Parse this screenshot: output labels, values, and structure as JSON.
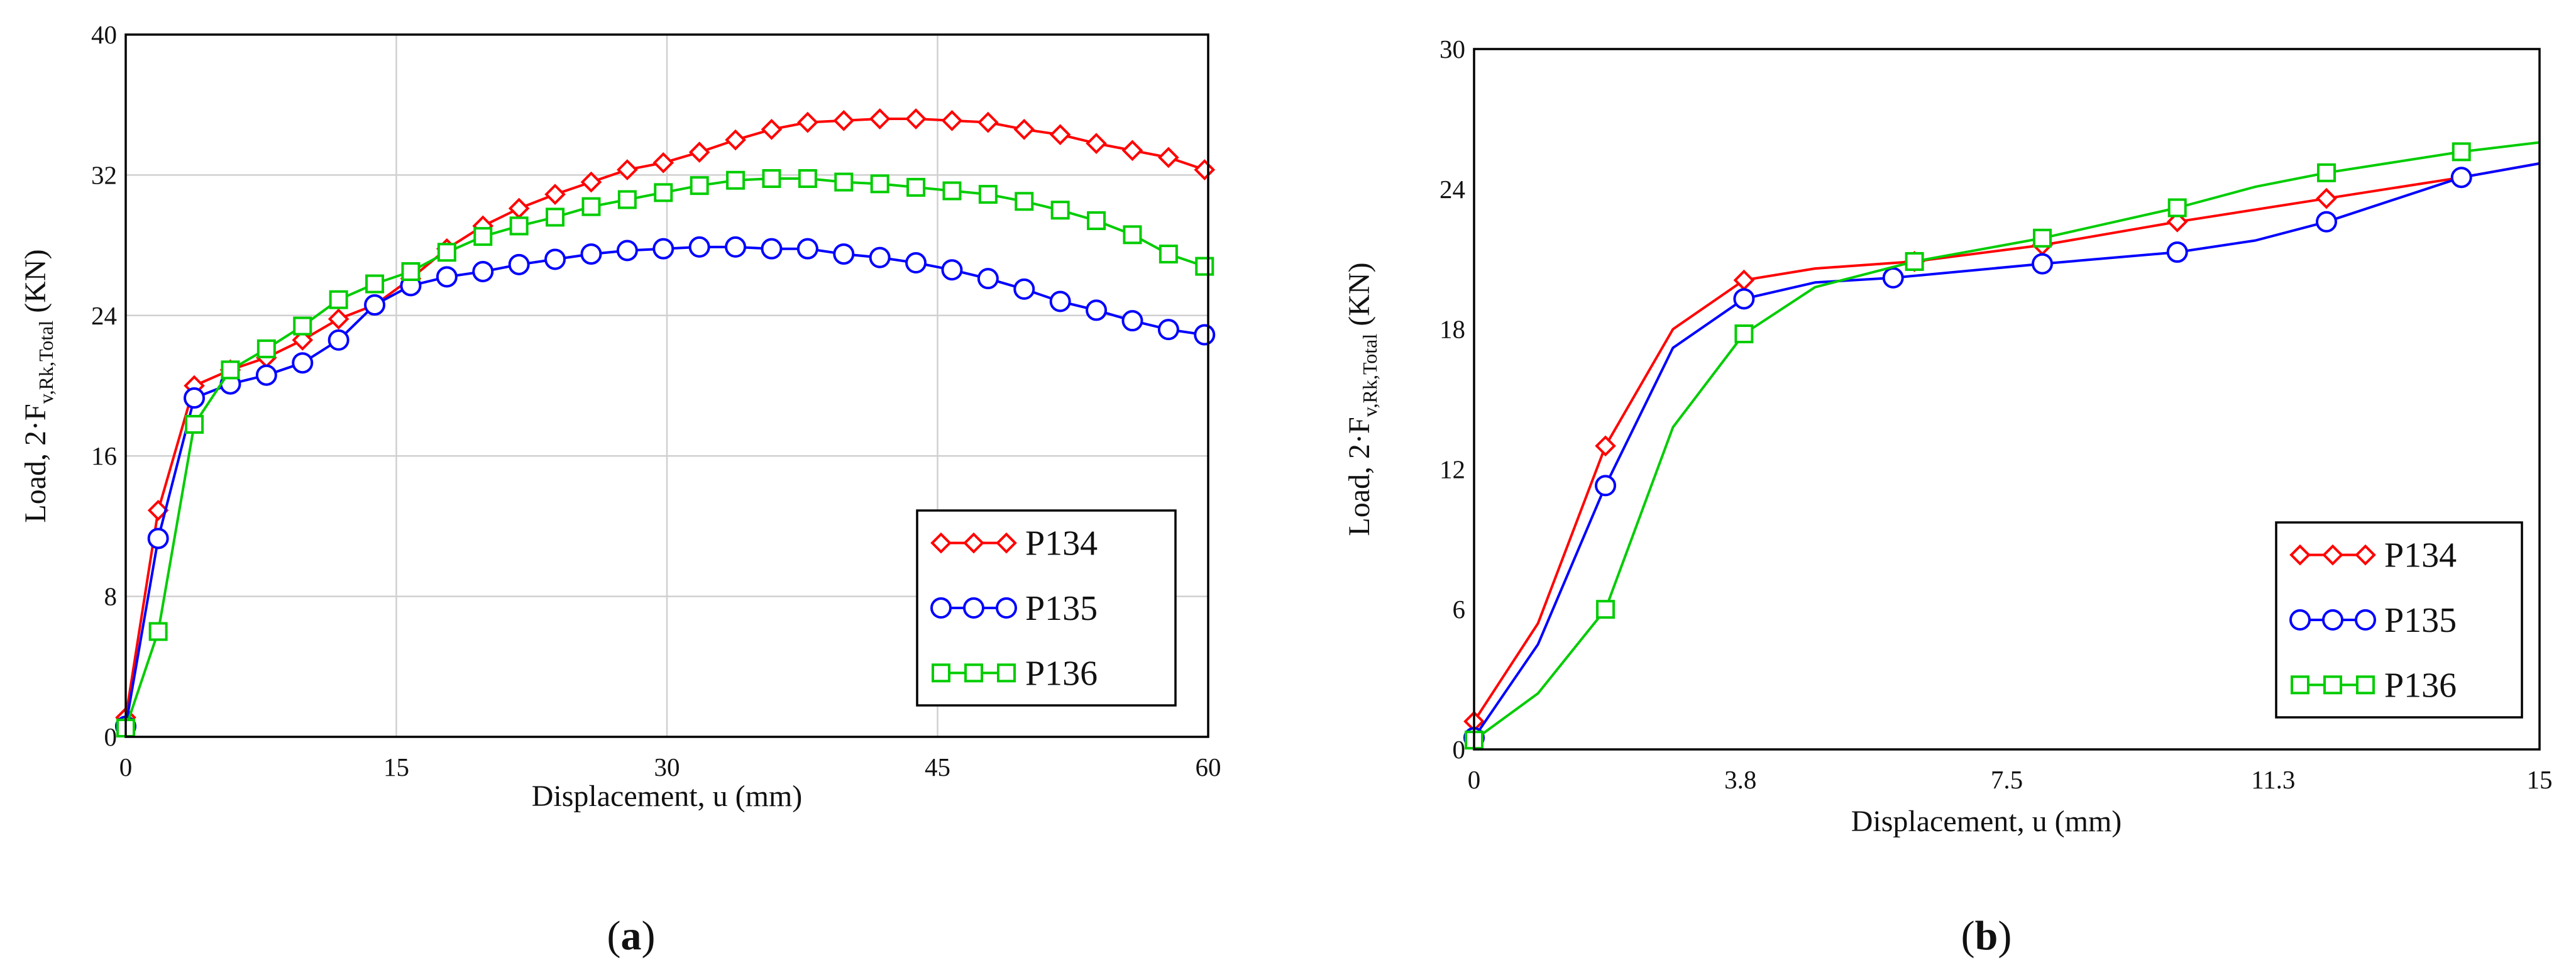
{
  "chart_data": [
    {
      "type": "line",
      "panel": "a",
      "caption": "a",
      "xlabel": "Displacement, u (mm)",
      "ylabel_main": "Load, 2·F",
      "ylabel_sub": "v,Rk,Total",
      "ylabel_unit": " (KN)",
      "xlim": [
        0,
        60
      ],
      "ylim": [
        0,
        40
      ],
      "xticks": [
        0,
        15,
        30,
        45,
        60
      ],
      "yticks": [
        0,
        8,
        16,
        24,
        32,
        40
      ],
      "xtick_labels": [
        "0",
        "15",
        "30",
        "45",
        "60"
      ],
      "ytick_labels": [
        "0",
        "8",
        "16",
        "24",
        "32",
        "40"
      ],
      "grid": true,
      "legend_position": "bottom-right",
      "series": [
        {
          "name": "P134",
          "color": "#ff0000",
          "marker": "diamond",
          "x": [
            0,
            1.8,
            3.8,
            5.8,
            7.8,
            9.8,
            11.8,
            13.8,
            15.8,
            17.8,
            19.8,
            21.8,
            23.8,
            25.8,
            27.8,
            29.8,
            31.8,
            33.8,
            35.8,
            37.8,
            39.8,
            41.8,
            43.8,
            45.8,
            47.8,
            49.8,
            51.8,
            53.8,
            55.8,
            57.8,
            59.8
          ],
          "y": [
            1.1,
            12.9,
            20.0,
            20.9,
            21.6,
            22.6,
            23.8,
            24.6,
            26.1,
            27.8,
            29.1,
            30.1,
            30.9,
            31.6,
            32.3,
            32.7,
            33.3,
            34.0,
            34.6,
            35.0,
            35.1,
            35.2,
            35.2,
            35.1,
            35.0,
            34.6,
            34.3,
            33.8,
            33.4,
            33.0,
            32.3
          ]
        },
        {
          "name": "P135",
          "color": "#0000ff",
          "marker": "circle",
          "x": [
            0,
            1.8,
            3.8,
            5.8,
            7.8,
            9.8,
            11.8,
            13.8,
            15.8,
            17.8,
            19.8,
            21.8,
            23.8,
            25.8,
            27.8,
            29.8,
            31.8,
            33.8,
            35.8,
            37.8,
            39.8,
            41.8,
            43.8,
            45.8,
            47.8,
            49.8,
            51.8,
            53.8,
            55.8,
            57.8,
            59.8
          ],
          "y": [
            0.6,
            11.3,
            19.3,
            20.1,
            20.6,
            21.3,
            22.6,
            24.6,
            25.7,
            26.2,
            26.5,
            26.9,
            27.2,
            27.5,
            27.7,
            27.8,
            27.9,
            27.9,
            27.8,
            27.8,
            27.5,
            27.3,
            27.0,
            26.6,
            26.1,
            25.5,
            24.8,
            24.3,
            23.7,
            23.2,
            22.9
          ]
        },
        {
          "name": "P136",
          "color": "#00cc00",
          "marker": "square",
          "x": [
            0,
            1.8,
            3.8,
            5.8,
            7.8,
            9.8,
            11.8,
            13.8,
            15.8,
            17.8,
            19.8,
            21.8,
            23.8,
            25.8,
            27.8,
            29.8,
            31.8,
            33.8,
            35.8,
            37.8,
            39.8,
            41.8,
            43.8,
            45.8,
            47.8,
            49.8,
            51.8,
            53.8,
            55.8,
            57.8,
            59.8
          ],
          "y": [
            0.5,
            6.0,
            17.8,
            20.9,
            22.1,
            23.4,
            24.9,
            25.8,
            26.5,
            27.6,
            28.5,
            29.1,
            29.6,
            30.2,
            30.6,
            31.0,
            31.4,
            31.7,
            31.8,
            31.8,
            31.6,
            31.5,
            31.3,
            31.1,
            30.9,
            30.5,
            30.0,
            29.4,
            28.6,
            27.5,
            26.8
          ]
        }
      ]
    },
    {
      "type": "line",
      "panel": "b",
      "caption": "b",
      "xlabel": "Displacement, u (mm)",
      "ylabel_main": "Load, 2·F",
      "ylabel_sub": "v,Rk,Total",
      "ylabel_unit": " (KN)",
      "xlim": [
        0,
        15
      ],
      "ylim": [
        0,
        30
      ],
      "xticks": [
        0,
        3.75,
        7.5,
        11.25,
        15
      ],
      "yticks": [
        0,
        6,
        12,
        18,
        24,
        30
      ],
      "xtick_labels": [
        "0",
        "3.8",
        "7.5",
        "11.3",
        "15"
      ],
      "ytick_labels": [
        "0",
        "6",
        "12",
        "18",
        "24",
        "30"
      ],
      "grid": false,
      "legend_position": "bottom-right",
      "series": [
        {
          "name": "P134",
          "color": "#ff0000",
          "marker": "diamond",
          "x": [
            0,
            0.9,
            1.85,
            2.8,
            3.8,
            4.8,
            6.2,
            8.0,
            9.9,
            12.0,
            13.9,
            15.0
          ],
          "y": [
            1.2,
            5.4,
            13.0,
            18.0,
            20.1,
            20.6,
            20.9,
            21.6,
            22.6,
            23.6,
            24.5,
            25.1
          ],
          "marker_indices": [
            0,
            2,
            4,
            6,
            7,
            8,
            9,
            10
          ]
        },
        {
          "name": "P135",
          "color": "#0000ff",
          "marker": "circle",
          "x": [
            0,
            0.9,
            1.85,
            2.8,
            3.8,
            4.8,
            5.9,
            8.0,
            9.9,
            11.0,
            12.0,
            13.9,
            15.0
          ],
          "y": [
            0.5,
            4.5,
            11.3,
            17.2,
            19.3,
            20.0,
            20.2,
            20.8,
            21.3,
            21.8,
            22.6,
            24.5,
            25.1
          ],
          "marker_indices": [
            0,
            2,
            4,
            6,
            7,
            8,
            10,
            11
          ]
        },
        {
          "name": "P136",
          "color": "#00cc00",
          "marker": "square",
          "x": [
            0,
            0.9,
            1.85,
            2.8,
            3.8,
            4.8,
            6.2,
            8.0,
            9.9,
            11.0,
            12.0,
            13.9,
            15.0
          ],
          "y": [
            0.4,
            2.4,
            6.0,
            13.8,
            17.8,
            19.8,
            20.9,
            21.9,
            23.2,
            24.1,
            24.7,
            25.6,
            26.0
          ],
          "marker_indices": [
            0,
            2,
            4,
            6,
            7,
            8,
            10,
            11
          ]
        }
      ]
    }
  ]
}
